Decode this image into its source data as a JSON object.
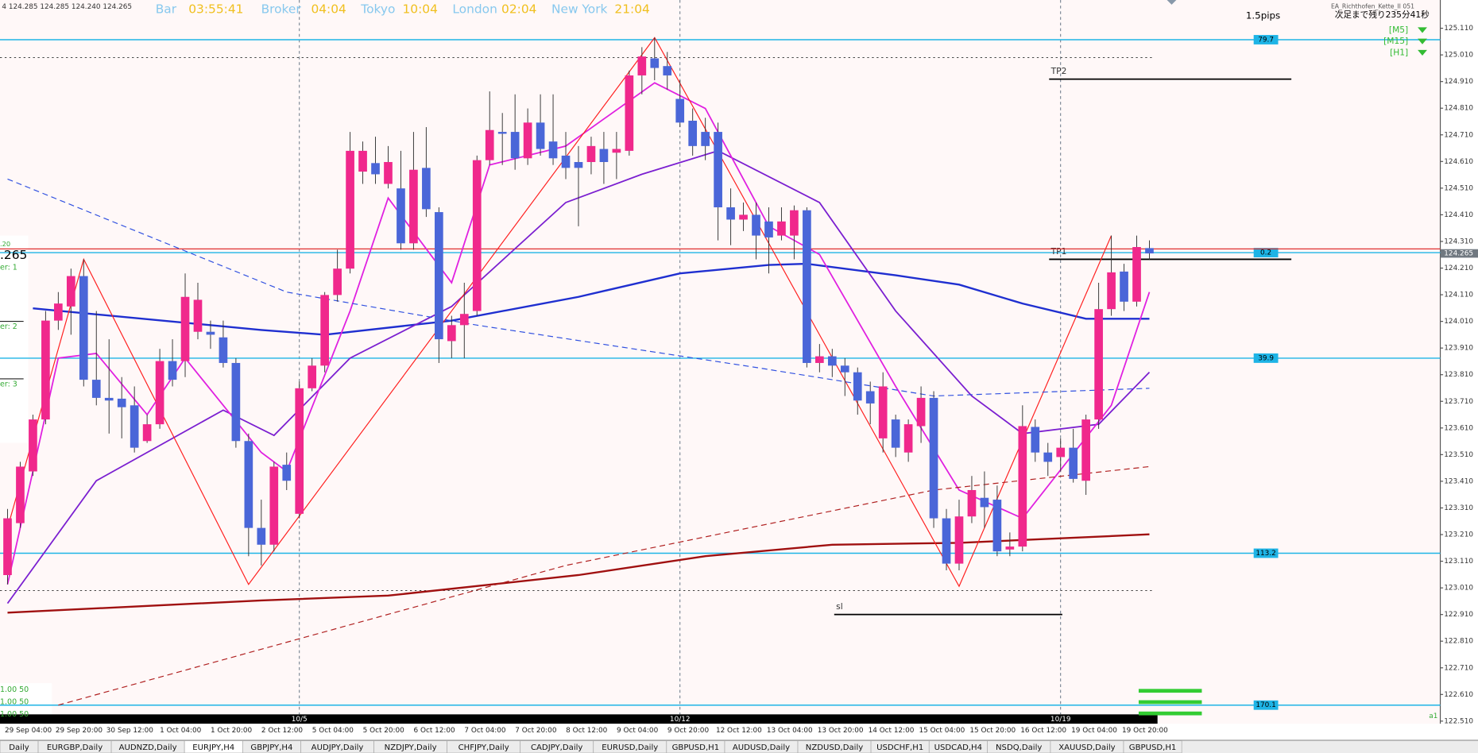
{
  "header": {
    "symbol_info": "4  124.285 124.285 124.240 124.265",
    "clocks": [
      {
        "label": "Bar",
        "time": "03:55:41"
      },
      {
        "label": "Broker",
        "time": "04:04"
      },
      {
        "label": "Tokyo",
        "time": "10:04"
      },
      {
        "label": "London",
        "time": "02:04"
      },
      {
        "label": "New York",
        "time": "21:04"
      }
    ]
  },
  "ea": {
    "spread": "1.5pips",
    "name": "EA_Richthofen_Kette_II 051",
    "countdown": "次足まで残り235分41秒",
    "timeframes": [
      "[M5]",
      "[M15]",
      "[H1]"
    ]
  },
  "left_panel": {
    "texts": [
      ".20",
      ".265",
      "er: 1",
      "er: 2",
      "er: 3"
    ],
    "bottom": [
      "1.00   50",
      "1.00   50",
      "1.00   50"
    ]
  },
  "chart_data": {
    "type": "candlestick",
    "ylim": [
      122.5,
      125.216
    ],
    "yticks": [
      {
        "value": 125.11,
        "label": "125.110"
      },
      {
        "value": 125.01,
        "label": "125.010"
      },
      {
        "value": 124.91,
        "label": "124.910"
      },
      {
        "value": 124.81,
        "label": "124.810"
      },
      {
        "value": 124.71,
        "label": "124.710"
      },
      {
        "value": 124.61,
        "label": "124.610"
      },
      {
        "value": 124.51,
        "label": "124.510"
      },
      {
        "value": 124.41,
        "label": "124.410"
      },
      {
        "value": 124.31,
        "label": "124.310"
      },
      {
        "value": 124.21,
        "label": "124.210"
      },
      {
        "value": 124.11,
        "label": "124.110"
      },
      {
        "value": 124.01,
        "label": "124.010"
      },
      {
        "value": 123.91,
        "label": "123.910"
      },
      {
        "value": 123.81,
        "label": "123.810"
      },
      {
        "value": 123.71,
        "label": "123.710"
      },
      {
        "value": 123.61,
        "label": "123.610"
      },
      {
        "value": 123.51,
        "label": "123.510"
      },
      {
        "value": 123.41,
        "label": "123.410"
      },
      {
        "value": 123.31,
        "label": "123.310"
      },
      {
        "value": 123.21,
        "label": "123.210"
      },
      {
        "value": 123.11,
        "label": "123.110"
      },
      {
        "value": 123.01,
        "label": "123.010"
      },
      {
        "value": 122.91,
        "label": "122.910"
      },
      {
        "value": 122.81,
        "label": "122.810"
      },
      {
        "value": 122.71,
        "label": "122.710"
      },
      {
        "value": 122.61,
        "label": "122.610"
      },
      {
        "value": 122.51,
        "label": "122.510"
      }
    ],
    "bull_color": "#f0288c",
    "bear_color": "#4a66d8",
    "candles": [
      [
        123.058,
        123.306,
        123.023,
        123.271
      ],
      [
        123.253,
        123.483,
        123.235,
        123.465
      ],
      [
        123.447,
        123.66,
        123.43,
        123.642
      ],
      [
        123.642,
        124.049,
        123.624,
        124.013
      ],
      [
        124.013,
        124.12,
        123.978,
        124.077
      ],
      [
        124.066,
        124.208,
        123.96,
        124.18
      ],
      [
        124.18,
        124.243,
        123.766,
        123.791
      ],
      [
        123.791,
        124.049,
        123.695,
        123.723
      ],
      [
        123.723,
        123.943,
        123.589,
        123.713
      ],
      [
        123.72,
        123.801,
        123.571,
        123.688
      ],
      [
        123.695,
        123.766,
        123.518,
        123.536
      ],
      [
        123.561,
        123.66,
        123.554,
        123.624
      ],
      [
        123.624,
        123.907,
        123.607,
        123.861
      ],
      [
        123.861,
        123.943,
        123.766,
        123.791
      ],
      [
        123.861,
        124.19,
        123.801,
        124.102
      ],
      [
        123.971,
        124.155,
        123.943,
        124.091
      ],
      [
        123.971,
        124.013,
        123.907,
        123.96
      ],
      [
        123.95,
        124.013,
        123.837,
        123.854
      ],
      [
        123.854,
        123.872,
        123.536,
        123.561
      ],
      [
        123.561,
        123.589,
        123.129,
        123.235
      ],
      [
        123.235,
        123.341,
        123.094,
        123.172
      ],
      [
        123.172,
        123.483,
        123.147,
        123.465
      ],
      [
        123.472,
        123.518,
        123.377,
        123.412
      ],
      [
        123.288,
        123.784,
        123.271,
        123.759
      ],
      [
        123.759,
        123.872,
        123.748,
        123.844
      ],
      [
        123.844,
        124.12,
        123.819,
        124.109
      ],
      [
        124.109,
        124.279,
        124.084,
        124.208
      ],
      [
        124.208,
        124.721,
        124.19,
        124.65
      ],
      [
        124.572,
        124.685,
        124.526,
        124.65
      ],
      [
        124.604,
        124.703,
        124.526,
        124.562
      ],
      [
        124.526,
        124.668,
        124.509,
        124.608
      ],
      [
        124.509,
        124.65,
        124.279,
        124.303
      ],
      [
        124.303,
        124.721,
        124.279,
        124.579
      ],
      [
        124.586,
        124.739,
        124.402,
        124.431
      ],
      [
        124.42,
        124.438,
        123.854,
        123.943
      ],
      [
        123.936,
        124.031,
        123.872,
        123.996
      ],
      [
        123.996,
        124.155,
        123.872,
        124.038
      ],
      [
        124.049,
        124.632,
        124.031,
        124.615
      ],
      [
        124.615,
        124.873,
        124.597,
        124.728
      ],
      [
        124.721,
        124.792,
        124.597,
        124.714
      ],
      [
        124.721,
        124.862,
        124.579,
        124.622
      ],
      [
        124.622,
        124.809,
        124.597,
        124.756
      ],
      [
        124.756,
        124.862,
        124.632,
        124.657
      ],
      [
        124.685,
        124.862,
        124.597,
        124.622
      ],
      [
        124.632,
        124.721,
        124.544,
        124.586
      ],
      [
        124.608,
        124.668,
        124.367,
        124.586
      ],
      [
        124.608,
        124.703,
        124.562,
        124.668
      ],
      [
        124.657,
        124.721,
        124.526,
        124.608
      ],
      [
        124.643,
        124.721,
        124.544,
        124.657
      ],
      [
        124.65,
        124.951,
        124.632,
        124.933
      ],
      [
        124.933,
        125.039,
        124.862,
        125.004
      ],
      [
        124.997,
        125.075,
        124.915,
        124.961
      ],
      [
        124.968,
        125.021,
        124.88,
        124.933
      ],
      [
        124.845,
        124.915,
        124.739,
        124.756
      ],
      [
        124.763,
        124.809,
        124.632,
        124.668
      ],
      [
        124.721,
        124.774,
        124.615,
        124.668
      ],
      [
        124.721,
        124.756,
        124.314,
        124.438
      ],
      [
        124.438,
        124.509,
        124.296,
        124.392
      ],
      [
        124.392,
        124.456,
        124.349,
        124.41
      ],
      [
        124.41,
        124.456,
        124.243,
        124.332
      ],
      [
        124.385,
        124.438,
        124.19,
        124.325
      ],
      [
        124.332,
        124.438,
        124.314,
        124.385
      ],
      [
        124.332,
        124.445,
        124.243,
        124.427
      ],
      [
        124.427,
        124.438,
        123.837,
        123.854
      ],
      [
        123.854,
        123.925,
        123.819,
        123.879
      ],
      [
        123.879,
        123.907,
        123.801,
        123.844
      ],
      [
        123.844,
        123.872,
        123.73,
        123.819
      ],
      [
        123.819,
        123.837,
        123.66,
        123.713
      ],
      [
        123.748,
        123.784,
        123.624,
        123.702
      ],
      [
        123.571,
        123.819,
        123.518,
        123.766
      ],
      [
        123.642,
        123.66,
        123.501,
        123.536
      ],
      [
        123.518,
        123.642,
        123.483,
        123.624
      ],
      [
        123.617,
        123.766,
        123.554,
        123.723
      ],
      [
        123.723,
        123.748,
        123.235,
        123.271
      ],
      [
        123.271,
        123.306,
        123.076,
        123.101
      ],
      [
        123.101,
        123.341,
        123.076,
        123.278
      ],
      [
        123.278,
        123.43,
        123.253,
        123.377
      ],
      [
        123.348,
        123.447,
        123.235,
        123.313
      ],
      [
        123.341,
        123.394,
        123.129,
        123.147
      ],
      [
        123.154,
        123.218,
        123.129,
        123.165
      ],
      [
        123.165,
        123.695,
        123.147,
        123.617
      ],
      [
        123.614,
        123.642,
        123.483,
        123.518
      ],
      [
        123.518,
        123.554,
        123.43,
        123.483
      ],
      [
        123.501,
        123.571,
        123.447,
        123.536
      ],
      [
        123.536,
        123.607,
        123.405,
        123.419
      ],
      [
        123.412,
        123.66,
        123.359,
        123.642
      ],
      [
        123.642,
        124.155,
        123.607,
        124.056
      ],
      [
        124.056,
        124.332,
        124.031,
        124.194
      ],
      [
        124.197,
        124.226,
        124.049,
        124.084
      ],
      [
        124.084,
        124.332,
        124.066,
        124.289
      ],
      [
        124.285,
        124.314,
        124.24,
        124.265
      ]
    ],
    "indicators": [
      {
        "color": "#1f2fd0",
        "width": 2,
        "dashed": false,
        "x": [
          2,
          20,
          25,
          35,
          45,
          53,
          60,
          63,
          70,
          75,
          80,
          85,
          90
        ],
        "values": [
          124.059,
          123.978,
          123.96,
          124.013,
          124.102,
          124.19,
          124.222,
          124.226,
          124.183,
          124.148,
          124.077,
          124.02,
          124.02
        ]
      },
      {
        "color": "#a01010",
        "width": 2,
        "dashed": false,
        "x": [
          0,
          20,
          30,
          45,
          55,
          65,
          75,
          90
        ],
        "values": [
          122.917,
          122.963,
          122.981,
          123.058,
          123.129,
          123.172,
          123.179,
          123.211
        ]
      },
      {
        "color": "#7b1fd0",
        "width": 1.5,
        "dashed": false,
        "x": [
          0,
          7,
          17,
          21,
          27,
          35,
          44,
          50,
          56,
          64,
          70,
          76,
          80,
          86,
          90
        ],
        "values": [
          122.952,
          123.412,
          123.677,
          123.582,
          123.872,
          124.066,
          124.456,
          124.562,
          124.65,
          124.456,
          124.049,
          123.73,
          123.589,
          123.624,
          123.819
        ]
      },
      {
        "color": "#e020e0",
        "width": 1.5,
        "dashed": false,
        "x": [
          0,
          4,
          7,
          11,
          14,
          20,
          22,
          27,
          30,
          35,
          38,
          44,
          51,
          55,
          60,
          64,
          70,
          75,
          80,
          87,
          90
        ],
        "values": [
          123.023,
          123.872,
          123.89,
          123.66,
          123.872,
          123.518,
          123.447,
          124.049,
          124.473,
          124.155,
          124.597,
          124.668,
          124.905,
          124.809,
          124.367,
          124.261,
          123.766,
          123.377,
          123.271,
          123.695,
          124.12
        ]
      },
      {
        "color": "#ff2020",
        "width": 1,
        "dashed": false,
        "x": [
          0,
          6,
          19,
          51,
          75,
          87
        ],
        "values": [
          123.235,
          124.243,
          123.023,
          125.075,
          123.016,
          124.332
        ]
      },
      {
        "color": "#3050e0",
        "width": 1,
        "dashed": true,
        "x": [
          0,
          22,
          37,
          59,
          73,
          90
        ],
        "values": [
          124.544,
          124.12,
          123.996,
          123.837,
          123.73,
          123.759
        ]
      },
      {
        "color": "#b02020",
        "width": 1,
        "dashed": true,
        "x": [
          4,
          44,
          73,
          90
        ],
        "values": [
          122.57,
          123.094,
          123.377,
          123.465
        ]
      }
    ],
    "levels": [
      {
        "label": "79.7",
        "price": 125.067
      },
      {
        "label": "0.2",
        "price": 124.268
      },
      {
        "label": "39.9",
        "price": 123.872
      },
      {
        "label": "113.2",
        "price": 123.14
      },
      {
        "label": "170.1",
        "price": 122.57
      }
    ],
    "targets": [
      {
        "label": "TP2",
        "price": 124.919
      },
      {
        "label": "TP1",
        "price": 124.243
      },
      {
        "label": "sl",
        "price": 122.91
      }
    ],
    "dotted_levels": [
      125,
      123
    ],
    "bid_line": 124.282,
    "current_price": 124.265,
    "period_labels": [
      "10/5",
      "10/12",
      "10/19"
    ],
    "time_labels": [
      "29 Sep 04:00",
      "29 Sep 20:00",
      "30 Sep 12:00",
      "1 Oct 04:00",
      "1 Oct 20:00",
      "2 Oct 12:00",
      "5 Oct 04:00",
      "5 Oct 20:00",
      "6 Oct 12:00",
      "7 Oct 04:00",
      "7 Oct 20:00",
      "8 Oct 12:00",
      "9 Oct 04:00",
      "9 Oct 20:00",
      "12 Oct 12:00",
      "13 Oct 04:00",
      "13 Oct 20:00",
      "14 Oct 12:00",
      "15 Oct 04:00",
      "15 Oct 20:00",
      "16 Oct 12:00",
      "19 Oct 04:00",
      "19 Oct 20:00"
    ],
    "corner_label": "a1"
  },
  "tabs": [
    "Daily",
    "EURGBP,Daily",
    "AUDNZD,Daily",
    "EURJPY,H4",
    "GBPJPY,H4",
    "AUDJPY,Daily",
    "NZDJPY,Daily",
    "CHFJPY,Daily",
    "CADJPY,Daily",
    "EURUSD,Daily",
    "GBPUSD,H1",
    "AUDUSD,Daily",
    "NZDUSD,Daily",
    "USDCHF,H1",
    "USDCAD,H4",
    "NSDQ,Daily",
    "XAUUSD,Daily",
    "GBPUSD,H1"
  ],
  "active_tab": 3
}
